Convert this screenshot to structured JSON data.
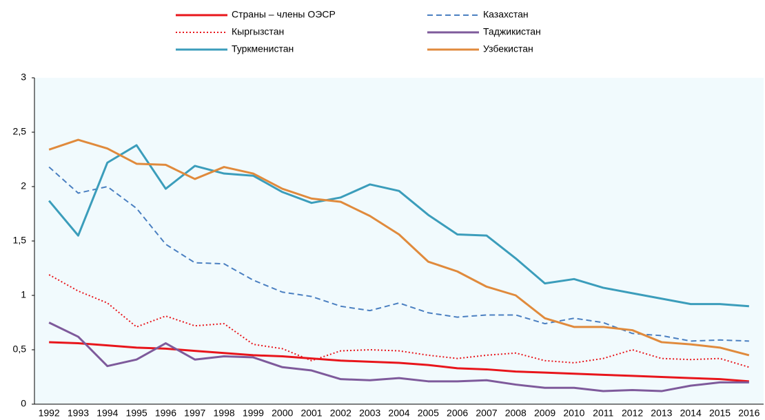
{
  "chart_data": {
    "type": "line",
    "categories": [
      "1992",
      "1993",
      "1994",
      "1995",
      "1996",
      "1997",
      "1998",
      "1999",
      "2000",
      "2001",
      "2002",
      "2003",
      "2004",
      "2005",
      "2006",
      "2007",
      "2008",
      "2009",
      "2010",
      "2011",
      "2012",
      "2013",
      "2014",
      "2015",
      "2016"
    ],
    "ylim": [
      0,
      3
    ],
    "yticks": [
      0,
      {
        "value": 0.5,
        "label": "0,5"
      },
      1,
      {
        "value": 1.5,
        "label": "1,5"
      },
      2,
      {
        "value": 2.5,
        "label": "2,5"
      },
      3
    ],
    "grid": false,
    "series": [
      {
        "name": "Страны – члены ОЭСР",
        "color": "#e8151b",
        "dash": "solid",
        "values": [
          0.57,
          0.56,
          0.54,
          0.52,
          0.51,
          0.49,
          0.47,
          0.45,
          0.44,
          0.42,
          0.4,
          0.39,
          0.38,
          0.36,
          0.33,
          0.32,
          0.3,
          0.29,
          0.28,
          0.27,
          0.26,
          0.25,
          0.24,
          0.23,
          0.21
        ]
      },
      {
        "name": "Казахстан",
        "color": "#4a7fc1",
        "dash": "dashed",
        "values": [
          2.18,
          1.94,
          2.0,
          1.8,
          1.47,
          1.3,
          1.29,
          1.14,
          1.03,
          0.99,
          0.9,
          0.86,
          0.93,
          0.84,
          0.8,
          0.82,
          0.82,
          0.74,
          0.79,
          0.75,
          0.65,
          0.63,
          0.58,
          0.59,
          0.58
        ]
      },
      {
        "name": "Кыргызстан",
        "color": "#e8151b",
        "dash": "dotted",
        "values": [
          1.19,
          1.04,
          0.93,
          0.71,
          0.81,
          0.72,
          0.74,
          0.55,
          0.51,
          0.4,
          0.49,
          0.5,
          0.49,
          0.45,
          0.42,
          0.45,
          0.47,
          0.4,
          0.38,
          0.42,
          0.5,
          0.42,
          0.41,
          0.42,
          0.34
        ]
      },
      {
        "name": "Таджикистан",
        "color": "#7e5a9b",
        "dash": "solid",
        "values": [
          0.75,
          0.62,
          0.35,
          0.41,
          0.56,
          0.41,
          0.44,
          0.43,
          0.34,
          0.31,
          0.23,
          0.22,
          0.24,
          0.21,
          0.21,
          0.22,
          0.18,
          0.15,
          0.15,
          0.12,
          0.13,
          0.12,
          0.17,
          0.2,
          0.2
        ]
      },
      {
        "name": "Туркменистан",
        "color": "#3b9dbb",
        "dash": "solid",
        "values": [
          1.87,
          1.55,
          2.22,
          2.38,
          1.98,
          2.19,
          2.12,
          2.1,
          1.95,
          1.85,
          1.9,
          2.02,
          1.96,
          1.74,
          1.56,
          1.55,
          1.34,
          1.11,
          1.15,
          1.07,
          1.02,
          0.97,
          0.92,
          0.92,
          0.9
        ]
      },
      {
        "name": "Узбекистан",
        "color": "#e08a3c",
        "dash": "solid",
        "values": [
          2.34,
          2.43,
          2.35,
          2.21,
          2.2,
          2.07,
          2.18,
          2.12,
          1.98,
          1.89,
          1.86,
          1.73,
          1.56,
          1.31,
          1.22,
          1.08,
          1.0,
          0.79,
          0.71,
          0.71,
          0.68,
          0.57,
          0.55,
          0.52,
          0.45
        ]
      }
    ]
  }
}
